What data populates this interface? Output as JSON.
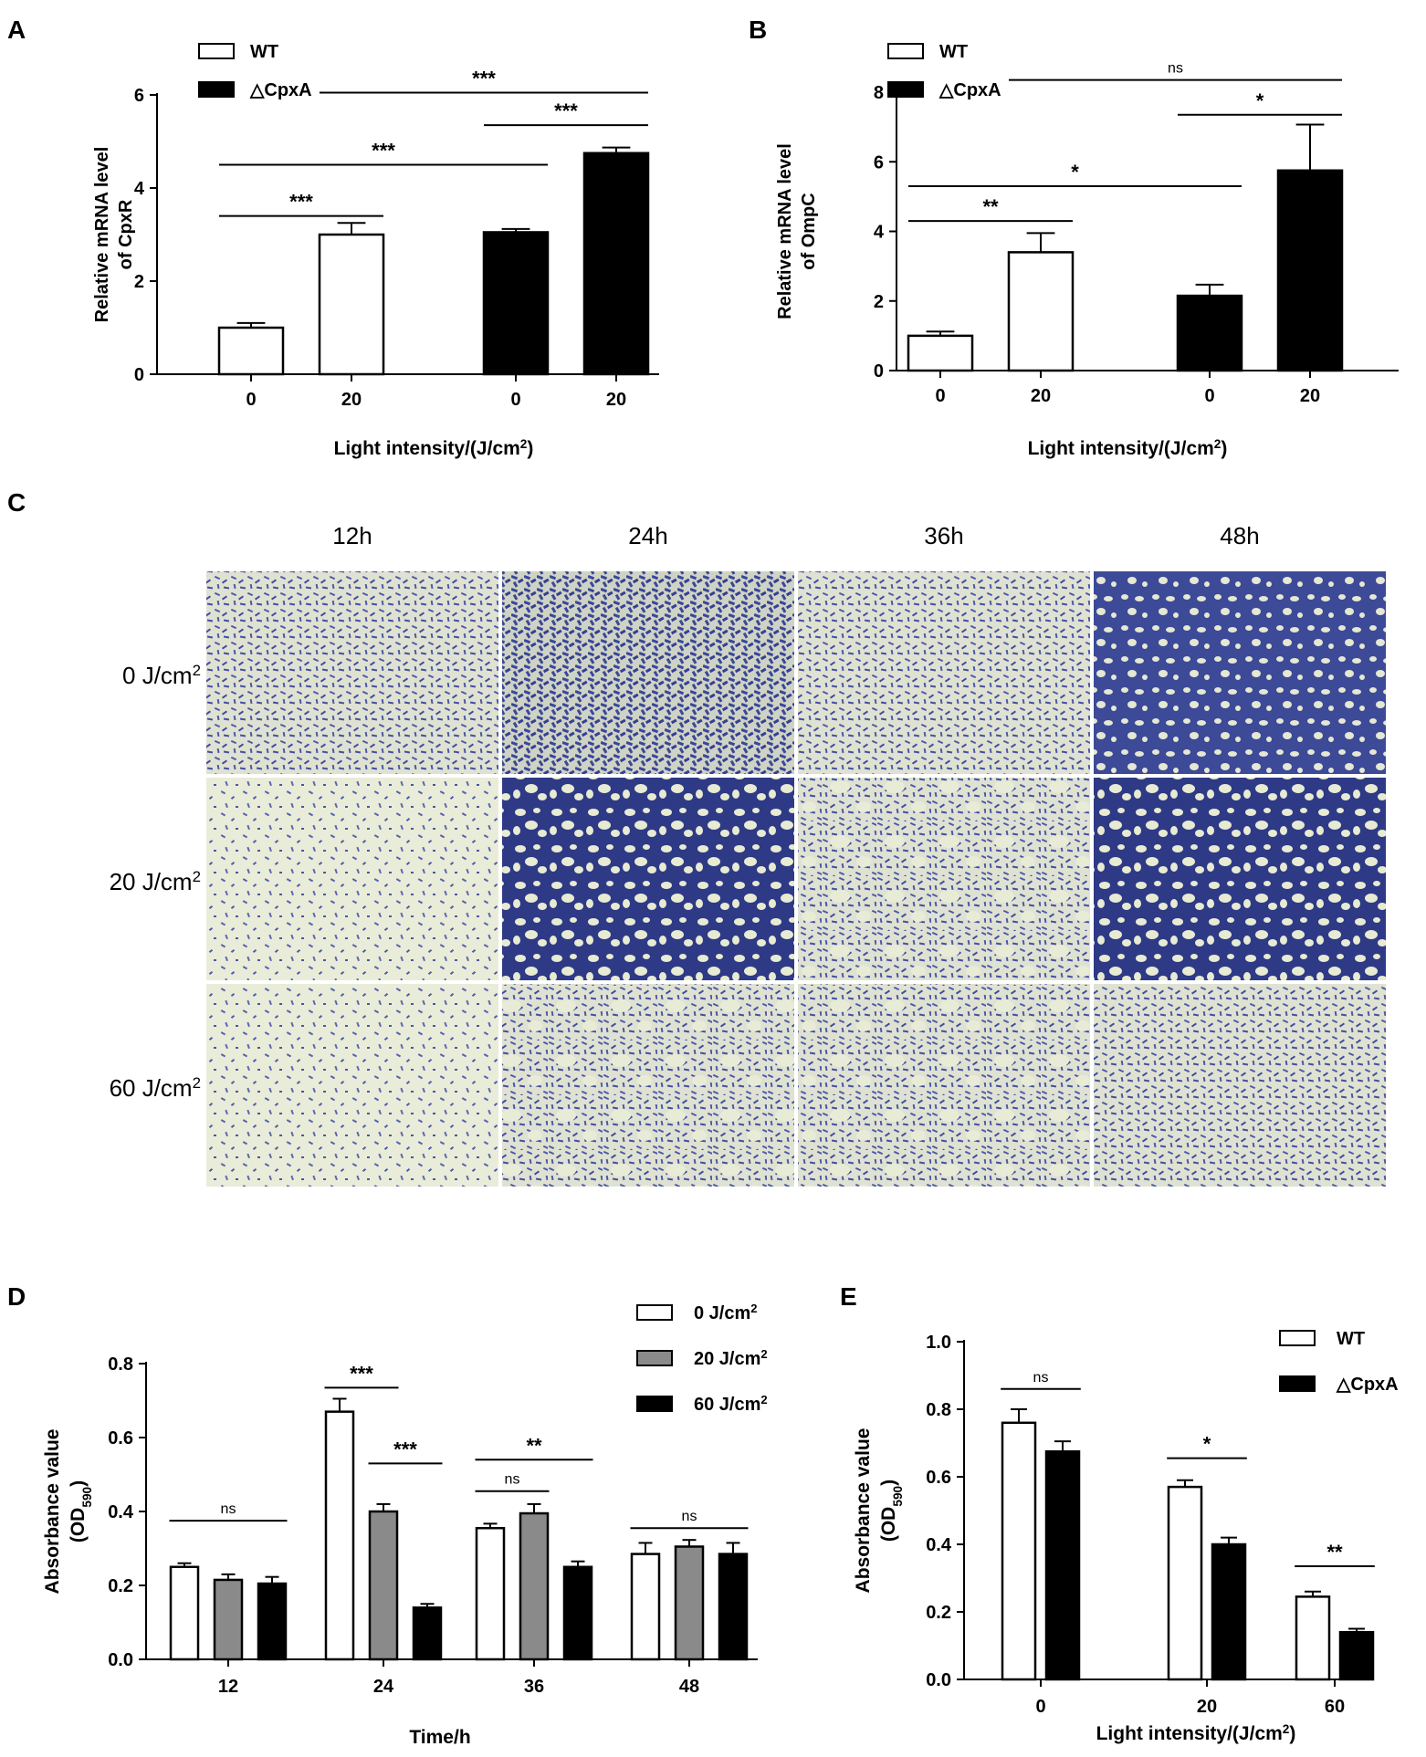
{
  "panels": {
    "A": {
      "label": "A"
    },
    "B": {
      "label": "B"
    },
    "C": {
      "label": "C"
    },
    "D": {
      "label": "D"
    },
    "E": {
      "label": "E"
    }
  },
  "chart_data": [
    {
      "id": "A",
      "type": "bar",
      "ylabel_lines": [
        "Relative mRNA level",
        "of CpxR"
      ],
      "xlabel": "Light intensity/(J/cm",
      "xlabel_sup": "2",
      "xlabel_tail": ")",
      "ylim": [
        0,
        6
      ],
      "yticks": [
        "0",
        "2",
        "4",
        "6"
      ],
      "categories": [
        "0",
        "20",
        "0",
        "20"
      ],
      "groups": [
        "WT",
        "WT",
        "△CpxA",
        "△CpxA"
      ],
      "values": [
        1.0,
        3.0,
        3.05,
        4.75
      ],
      "errors": [
        0.1,
        0.25,
        0.07,
        0.12
      ],
      "legend": [
        {
          "name": "WT",
          "color": "#ffffff"
        },
        {
          "name": "△CpxA",
          "color": "#000000"
        }
      ],
      "significance": [
        {
          "from": 0,
          "to": 1,
          "y": 3.4,
          "text": "***"
        },
        {
          "from": 0,
          "to": 2,
          "y": 4.5,
          "text": "***"
        },
        {
          "from": 2,
          "to": 3,
          "y": 5.35,
          "text": "***"
        },
        {
          "from": 1,
          "to": 3,
          "y": 6.05,
          "text": "***"
        }
      ]
    },
    {
      "id": "B",
      "type": "bar",
      "ylabel_lines": [
        "Relative mRNA level",
        "of OmpC"
      ],
      "xlabel": "Light intensity/(J/cm",
      "xlabel_sup": "2",
      "xlabel_tail": ")",
      "ylim": [
        0,
        8
      ],
      "yticks": [
        "0",
        "2",
        "4",
        "6",
        "8"
      ],
      "categories": [
        "0",
        "20",
        "0",
        "20"
      ],
      "groups": [
        "WT",
        "WT",
        "△CpxA",
        "△CpxA"
      ],
      "values": [
        1.0,
        3.4,
        2.15,
        5.75
      ],
      "errors": [
        0.12,
        0.55,
        0.32,
        1.32
      ],
      "legend": [
        {
          "name": "WT",
          "color": "#ffffff"
        },
        {
          "name": "△CpxA",
          "color": "#000000"
        }
      ],
      "significance": [
        {
          "from": 0,
          "to": 1,
          "y": 4.3,
          "text": "**"
        },
        {
          "from": 0,
          "to": 2,
          "y": 5.3,
          "text": "*"
        },
        {
          "from": 2,
          "to": 3,
          "y": 7.35,
          "text": "*"
        },
        {
          "from": 1,
          "to": 3,
          "y": 8.35,
          "text": "ns"
        }
      ]
    },
    {
      "id": "D",
      "type": "bar",
      "ylabel_lines": [
        "Absorbance value",
        "(OD"
      ],
      "ylabel_sub": "590",
      "ylabel_tail": ")",
      "xlabel": "Time/h",
      "ylim": [
        0,
        0.8
      ],
      "yticks": [
        "0.0",
        "0.2",
        "0.4",
        "0.6",
        "0.8"
      ],
      "categories": [
        "12",
        "24",
        "36",
        "48"
      ],
      "series": [
        {
          "name": "0 J/cm",
          "sup": "2",
          "color": "#ffffff",
          "values": [
            0.25,
            0.67,
            0.355,
            0.285
          ],
          "errors": [
            0.01,
            0.035,
            0.012,
            0.03
          ]
        },
        {
          "name": "20 J/cm",
          "sup": "2",
          "color": "#8a8a8a",
          "values": [
            0.215,
            0.4,
            0.395,
            0.305
          ],
          "errors": [
            0.015,
            0.02,
            0.025,
            0.018
          ]
        },
        {
          "name": "60 J/cm",
          "sup": "2",
          "color": "#000000",
          "values": [
            0.205,
            0.14,
            0.25,
            0.285
          ],
          "errors": [
            0.018,
            0.01,
            0.015,
            0.03
          ]
        }
      ],
      "significance": [
        {
          "cat": 0,
          "from": 0,
          "to": 2,
          "y": 0.375,
          "text": "ns"
        },
        {
          "cat": 1,
          "from": 0,
          "to": 1,
          "y": 0.735,
          "text": "***"
        },
        {
          "cat": 1,
          "from": 1,
          "to": 2,
          "y": 0.53,
          "text": "***"
        },
        {
          "cat": 2,
          "from": 0,
          "to": 1,
          "y": 0.455,
          "text": "ns"
        },
        {
          "cat": 2,
          "from": 0,
          "to": 2,
          "y": 0.54,
          "text": "**"
        },
        {
          "cat": 3,
          "from": 0,
          "to": 2,
          "y": 0.355,
          "text": "ns"
        }
      ]
    },
    {
      "id": "E",
      "type": "bar",
      "ylabel_lines": [
        "Absorbance value",
        "(OD"
      ],
      "ylabel_sub": "590",
      "ylabel_tail": ")",
      "xlabel": "Light intensity/(J/cm",
      "xlabel_sup": "2",
      "xlabel_tail": ")",
      "ylim": [
        0,
        1.0
      ],
      "yticks": [
        "0.0",
        "0.2",
        "0.4",
        "0.6",
        "0.8",
        "1.0"
      ],
      "categories": [
        "0",
        "20",
        "60"
      ],
      "series": [
        {
          "name": "WT",
          "color": "#ffffff",
          "values": [
            0.76,
            0.57,
            0.245
          ],
          "errors": [
            0.04,
            0.02,
            0.015
          ]
        },
        {
          "name": "△CpxA",
          "color": "#000000",
          "values": [
            0.675,
            0.4,
            0.14
          ],
          "errors": [
            0.03,
            0.02,
            0.01
          ]
        }
      ],
      "significance": [
        {
          "cat": 0,
          "from": 0,
          "to": 1,
          "y": 0.86,
          "text": "ns"
        },
        {
          "cat": 1,
          "from": 0,
          "to": 1,
          "y": 0.655,
          "text": "*"
        },
        {
          "cat": 2,
          "from": 0,
          "to": 1,
          "y": 0.335,
          "text": "**"
        }
      ]
    }
  ],
  "micrographs": {
    "columns": [
      "12h",
      "24h",
      "36h",
      "48h"
    ],
    "rows": [
      {
        "label": "0 J/cm",
        "sup": "2"
      },
      {
        "label": "20 J/cm",
        "sup": "2"
      },
      {
        "label": "60 J/cm",
        "sup": "2"
      }
    ],
    "colors": {
      "background": "#e9ecd6",
      "stain": "#4a58a8",
      "dark": "#2a2f6a"
    }
  }
}
